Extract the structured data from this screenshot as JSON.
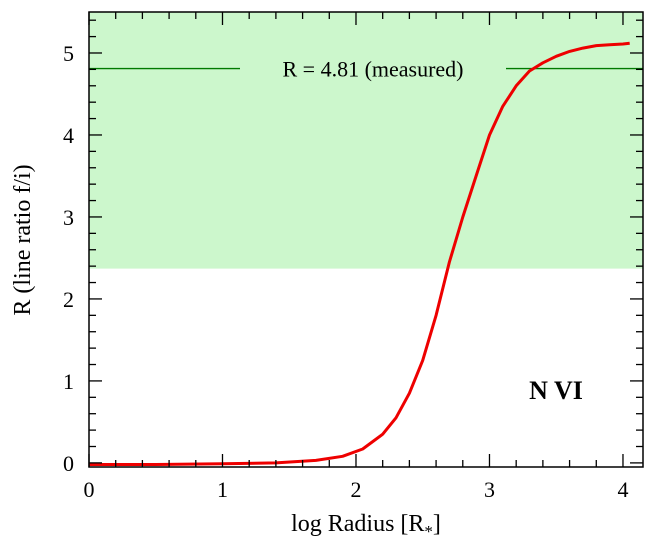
{
  "chart_data": {
    "type": "line",
    "xlabel": "log Radius [R",
    "xlabel_sub": "*",
    "xlabel_close": "]",
    "ylabel": "R (line ratio f/i)",
    "xlim": [
      0,
      4.15
    ],
    "ylim": [
      -0.05,
      5.5
    ],
    "xticks": [
      0,
      1,
      2,
      3,
      4
    ],
    "yticks": [
      0,
      1,
      2,
      3,
      4,
      5
    ],
    "x_minor_step": 0.2,
    "y_minor_step": 0.2,
    "grid": false,
    "shaded_region": {
      "y_from": 2.37,
      "y_to": 5.5,
      "color": "#ccf7cc"
    },
    "reference_line": {
      "y": 4.81,
      "label": "R = 4.81 (measured)",
      "color": "#007a00"
    },
    "annotation": "N VI",
    "series": [
      {
        "color": "#ee0000",
        "x": [
          0,
          0.5,
          1.0,
          1.4,
          1.7,
          1.9,
          2.05,
          2.2,
          2.3,
          2.4,
          2.5,
          2.6,
          2.7,
          2.8,
          2.9,
          3.0,
          3.1,
          3.2,
          3.3,
          3.4,
          3.5,
          3.6,
          3.7,
          3.8,
          3.9,
          4.0,
          4.05
        ],
        "y": [
          -0.02,
          -0.02,
          -0.01,
          0.0,
          0.03,
          0.08,
          0.17,
          0.35,
          0.55,
          0.85,
          1.25,
          1.8,
          2.45,
          3.0,
          3.5,
          4.0,
          4.35,
          4.6,
          4.78,
          4.88,
          4.96,
          5.02,
          5.06,
          5.09,
          5.1,
          5.11,
          5.12
        ]
      }
    ]
  }
}
